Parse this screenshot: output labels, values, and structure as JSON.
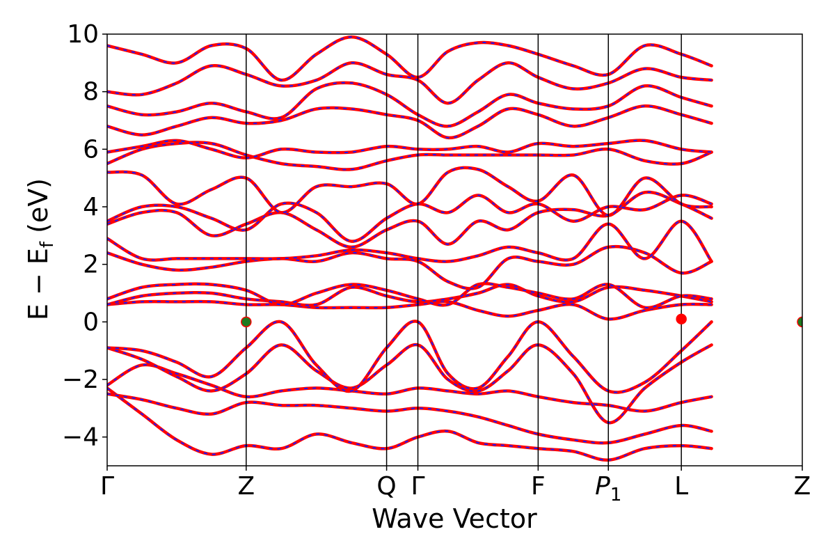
{
  "chart_data": {
    "type": "line",
    "title": "",
    "xlabel": "Wave Vector",
    "ylabel": "E − E_f (eV)",
    "ylabel_parts": {
      "main": "E − E",
      "sub": "f",
      "unit": " (eV)"
    },
    "ylim": [
      -5,
      10
    ],
    "yticks": [
      -4,
      -2,
      0,
      2,
      4,
      6,
      8,
      10
    ],
    "ytick_labels": [
      "−4",
      "−2",
      "0",
      "2",
      "4",
      "6",
      "8",
      "10"
    ],
    "xlim": [
      0,
      1
    ],
    "high_symmetry_points": [
      {
        "label": "Γ",
        "x": 0.0
      },
      {
        "label": "Z",
        "x": 0.2
      },
      {
        "label": "Q",
        "x": 0.402
      },
      {
        "label": "Γ",
        "x": 0.447
      },
      {
        "label": "F",
        "x": 0.62
      },
      {
        "label": "P",
        "sub": "1",
        "x": 0.721
      },
      {
        "label": "L",
        "x": 0.826
      },
      {
        "label": "Z",
        "x": 1.0
      }
    ],
    "grid": false,
    "legend": "none",
    "styles": {
      "red_band_color": "#ff0000",
      "blue_band_color": "#1a1aff",
      "vertical_line_color": "#000000",
      "vbm_marker_color": "#1f7a1f",
      "cbm_marker_color": "#ff0000"
    },
    "markers": [
      {
        "type": "vbm",
        "x": 0.2,
        "y": 0.0
      },
      {
        "type": "vbm",
        "x": 1.0,
        "y": 0.0
      },
      {
        "type": "cbm",
        "x": 0.826,
        "y": 0.1
      }
    ],
    "series": [
      {
        "y": [
          -2.3,
          -3.2,
          -4.1,
          -4.6,
          -4.3,
          -4.4,
          -3.9,
          -4.2,
          -4.4,
          -4.0,
          -3.8,
          -4.2,
          -4.3,
          -4.4,
          -4.5,
          -4.8,
          -4.4,
          -4.3,
          -4.4
        ]
      },
      {
        "y": [
          -2.5,
          -2.7,
          -3.0,
          -3.2,
          -2.8,
          -2.9,
          -2.9,
          -3.0,
          -3.1,
          -3.0,
          -3.1,
          -3.3,
          -3.6,
          -3.9,
          -4.1,
          -4.2,
          -3.9,
          -3.6,
          -3.8
        ]
      },
      {
        "y": [
          -2.2,
          -1.5,
          -1.8,
          -2.2,
          -2.6,
          -2.4,
          -2.3,
          -2.4,
          -2.5,
          -2.3,
          -2.4,
          -2.5,
          -2.4,
          -2.6,
          -2.8,
          -2.9,
          -3.1,
          -2.8,
          -2.6
        ]
      },
      {
        "y": [
          -0.9,
          -1.3,
          -1.9,
          -2.4,
          -1.8,
          -0.8,
          -1.7,
          -2.3,
          -1.5,
          -0.8,
          -2.0,
          -2.4,
          -1.7,
          -0.8,
          -1.8,
          -3.5,
          -2.3,
          -1.4,
          -0.8
        ]
      },
      {
        "y": [
          -0.9,
          -1.0,
          -1.4,
          -1.9,
          -0.9,
          0.0,
          -1.5,
          -2.4,
          -0.9,
          0.0,
          -1.8,
          -2.3,
          -1.2,
          0.0,
          -1.2,
          -2.4,
          -2.1,
          -1.0,
          0.0
        ]
      },
      {
        "y": [
          0.6,
          0.7,
          0.7,
          0.7,
          0.6,
          0.6,
          0.5,
          0.5,
          0.5,
          0.6,
          0.7,
          0.4,
          0.2,
          0.4,
          0.6,
          0.1,
          0.4,
          0.6,
          0.6
        ]
      },
      {
        "y": [
          0.6,
          0.9,
          1.0,
          1.0,
          0.8,
          0.7,
          0.6,
          1.2,
          0.9,
          0.7,
          0.8,
          1.0,
          1.3,
          0.9,
          0.7,
          1.2,
          1.1,
          0.9,
          0.7
        ]
      },
      {
        "y": [
          0.8,
          1.2,
          1.3,
          1.3,
          1.1,
          0.6,
          1.0,
          1.3,
          1.1,
          0.8,
          0.6,
          1.3,
          1.2,
          1.0,
          0.8,
          1.3,
          0.5,
          0.9,
          0.8
        ]
      },
      {
        "y": [
          2.4,
          2.0,
          1.8,
          1.9,
          2.1,
          2.2,
          2.1,
          2.4,
          2.2,
          2.1,
          1.4,
          1.2,
          2.2,
          2.1,
          2.0,
          2.6,
          2.4,
          1.7,
          2.1
        ]
      },
      {
        "y": [
          2.9,
          2.2,
          2.2,
          2.2,
          2.2,
          2.2,
          2.3,
          2.5,
          2.4,
          2.2,
          2.1,
          2.3,
          2.6,
          2.4,
          2.2,
          3.4,
          2.2,
          3.5,
          2.1
        ]
      },
      {
        "y": [
          3.4,
          3.8,
          3.8,
          3.0,
          3.4,
          3.8,
          3.2,
          2.6,
          3.2,
          3.5,
          2.7,
          3.5,
          3.2,
          3.8,
          3.9,
          3.7,
          4.5,
          4.1,
          3.6
        ]
      },
      {
        "y": [
          3.5,
          4.0,
          4.0,
          3.6,
          3.2,
          4.1,
          3.8,
          2.8,
          3.6,
          4.1,
          3.8,
          4.4,
          3.8,
          4.1,
          3.5,
          4.0,
          3.9,
          4.4,
          4.1
        ]
      },
      {
        "y": [
          5.2,
          5.1,
          4.1,
          4.6,
          5.0,
          3.8,
          4.7,
          4.7,
          4.8,
          4.1,
          5.2,
          5.3,
          4.7,
          4.2,
          5.1,
          3.7,
          5.0,
          4.1,
          4.0
        ]
      },
      {
        "y": [
          5.5,
          6.0,
          6.2,
          6.2,
          5.8,
          5.5,
          5.4,
          5.3,
          5.6,
          5.8,
          5.8,
          5.8,
          5.8,
          5.8,
          5.8,
          6.0,
          5.6,
          5.5,
          5.9
        ]
      },
      {
        "y": [
          5.9,
          6.1,
          6.3,
          6.0,
          5.7,
          6.0,
          5.9,
          5.9,
          6.1,
          6.0,
          6.0,
          6.1,
          5.9,
          6.2,
          6.1,
          6.2,
          6.3,
          6.0,
          5.9
        ]
      },
      {
        "y": [
          6.8,
          6.5,
          6.8,
          7.1,
          6.9,
          7.0,
          7.4,
          7.4,
          7.2,
          7.0,
          6.4,
          6.8,
          7.4,
          7.2,
          6.8,
          7.1,
          7.5,
          7.2,
          6.9
        ]
      },
      {
        "y": [
          7.5,
          7.2,
          7.3,
          7.6,
          7.3,
          7.1,
          8.1,
          8.3,
          7.9,
          7.2,
          6.8,
          7.3,
          7.9,
          7.6,
          7.4,
          7.5,
          8.2,
          7.8,
          7.5
        ]
      },
      {
        "y": [
          8.0,
          7.9,
          8.3,
          8.9,
          8.6,
          8.2,
          8.4,
          9.0,
          8.6,
          8.4,
          7.6,
          8.4,
          9.0,
          8.5,
          8.1,
          8.3,
          8.8,
          8.5,
          8.4
        ]
      },
      {
        "y": [
          9.6,
          9.3,
          9.0,
          9.6,
          9.5,
          8.4,
          9.3,
          9.9,
          9.3,
          8.5,
          9.4,
          9.7,
          9.6,
          9.3,
          8.9,
          8.6,
          9.6,
          9.3,
          8.9
        ]
      }
    ]
  }
}
